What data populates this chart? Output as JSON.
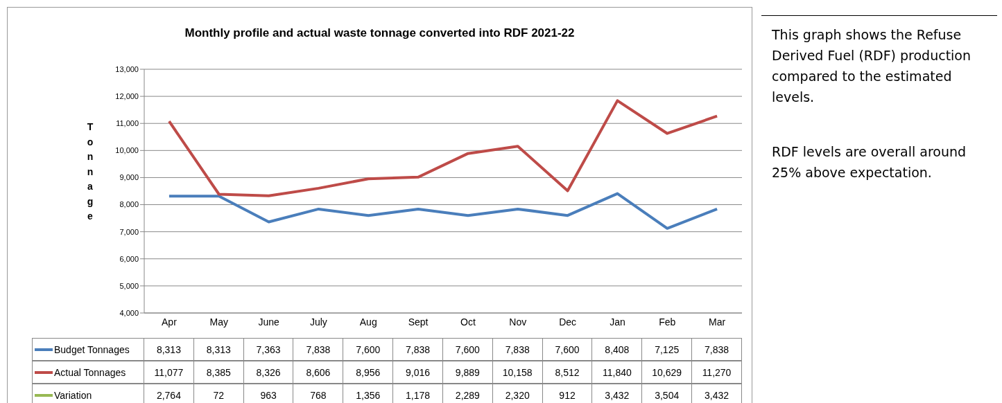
{
  "chart_data": {
    "type": "line",
    "title": "Monthly profile and actual waste tonnage converted into RDF 2021-22",
    "ylabel": "Tonnage",
    "categories": [
      "Apr",
      "May",
      "June",
      "July",
      "Aug",
      "Sept",
      "Oct",
      "Nov",
      "Dec",
      "Jan",
      "Feb",
      "Mar"
    ],
    "series": [
      {
        "name": "Budget Tonnages",
        "color": "#4a7ebb",
        "values": [
          8313,
          8313,
          7363,
          7838,
          7600,
          7838,
          7600,
          7838,
          7600,
          8408,
          7125,
          7838
        ],
        "value_labels": [
          "8,313",
          "8,313",
          "7,363",
          "7,838",
          "7,600",
          "7,838",
          "7,600",
          "7,838",
          "7,600",
          "8,408",
          "7,125",
          "7,838"
        ]
      },
      {
        "name": "Actual Tonnages",
        "color": "#be4b48",
        "values": [
          11077,
          8385,
          8326,
          8606,
          8956,
          9016,
          9889,
          10158,
          8512,
          11840,
          10629,
          11270
        ],
        "value_labels": [
          "11,077",
          "8,385",
          "8,326",
          "8,606",
          "8,956",
          "9,016",
          "9,889",
          "10,158",
          "8,512",
          "11,840",
          "10,629",
          "11,270"
        ]
      },
      {
        "name": "Variation",
        "color": "#98b954",
        "values": [
          null,
          null,
          null,
          null,
          null,
          null,
          null,
          null,
          null,
          null,
          null,
          null
        ],
        "value_labels": [
          "2,764",
          "72",
          "963",
          "768",
          "1,356",
          "1,178",
          "2,289",
          "2,320",
          "912",
          "3,432",
          "3,504",
          "3,432"
        ]
      }
    ],
    "ylim": [
      4000,
      13000
    ],
    "yticks": [
      {
        "value": 4000,
        "label": "4,000"
      },
      {
        "value": 5000,
        "label": "5,000"
      },
      {
        "value": 6000,
        "label": "6,000"
      },
      {
        "value": 7000,
        "label": "7,000"
      },
      {
        "value": 8000,
        "label": "8,000"
      },
      {
        "value": 9000,
        "label": "9,000"
      },
      {
        "value": 10000,
        "label": "10,000"
      },
      {
        "value": 11000,
        "label": "11,000"
      },
      {
        "value": 12000,
        "label": "12,000"
      },
      {
        "value": 13000,
        "label": "13,000"
      }
    ],
    "grid": "y",
    "legend": "bottom",
    "marker": "none",
    "line_style": "solid",
    "annotations": [
      "This graph shows the Refuse Derived Fuel (RDF) production compared to the estimated levels.",
      "RDF levels are overall around 25% above expectation."
    ]
  }
}
